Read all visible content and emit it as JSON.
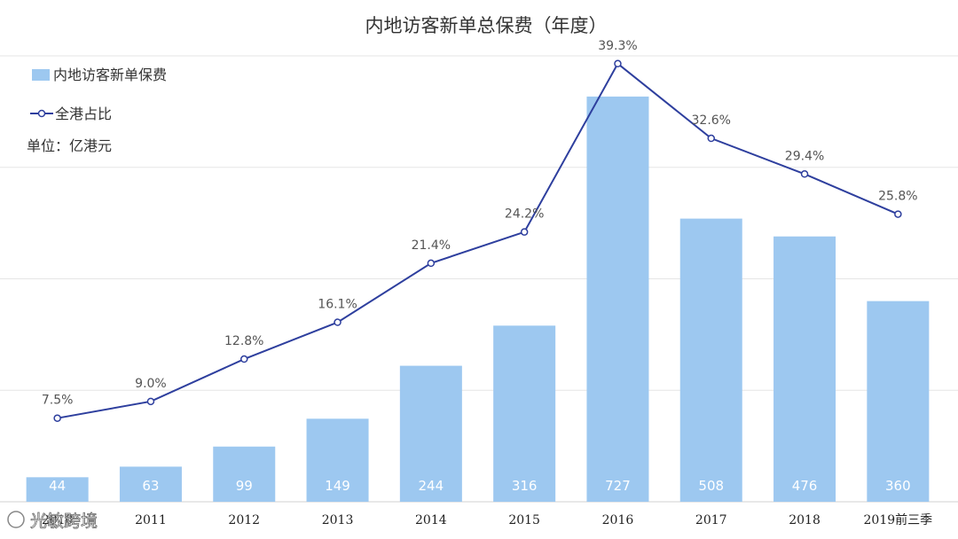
{
  "chart_data": {
    "type": "bar",
    "title": "内地访客新单总保费（年度）",
    "unit_label": "单位：亿港元",
    "categories": [
      "2010",
      "2011",
      "2012",
      "2013",
      "2014",
      "2015",
      "2016",
      "2017",
      "2018",
      "2019前三季"
    ],
    "series": [
      {
        "name": "内地访客新单保费",
        "type": "bar",
        "values": [
          44,
          63,
          99,
          149,
          244,
          316,
          727,
          508,
          476,
          360
        ],
        "color": "#9dc8f0"
      },
      {
        "name": "全港占比",
        "type": "line",
        "values": [
          7.5,
          9.0,
          12.8,
          16.1,
          21.4,
          24.2,
          39.3,
          32.6,
          29.4,
          25.8
        ],
        "labels": [
          "7.5%",
          "9.0%",
          "12.8%",
          "16.1%",
          "21.4%",
          "24.2%",
          "39.3%",
          "32.6%",
          "29.4%",
          "25.8%"
        ],
        "color": "#2e3f9e"
      }
    ],
    "ylim_bar": [
      0,
      800
    ],
    "ylim_line": [
      0,
      40
    ],
    "grid": true,
    "legend_position": "top-left"
  },
  "watermark": "光敏跨境"
}
